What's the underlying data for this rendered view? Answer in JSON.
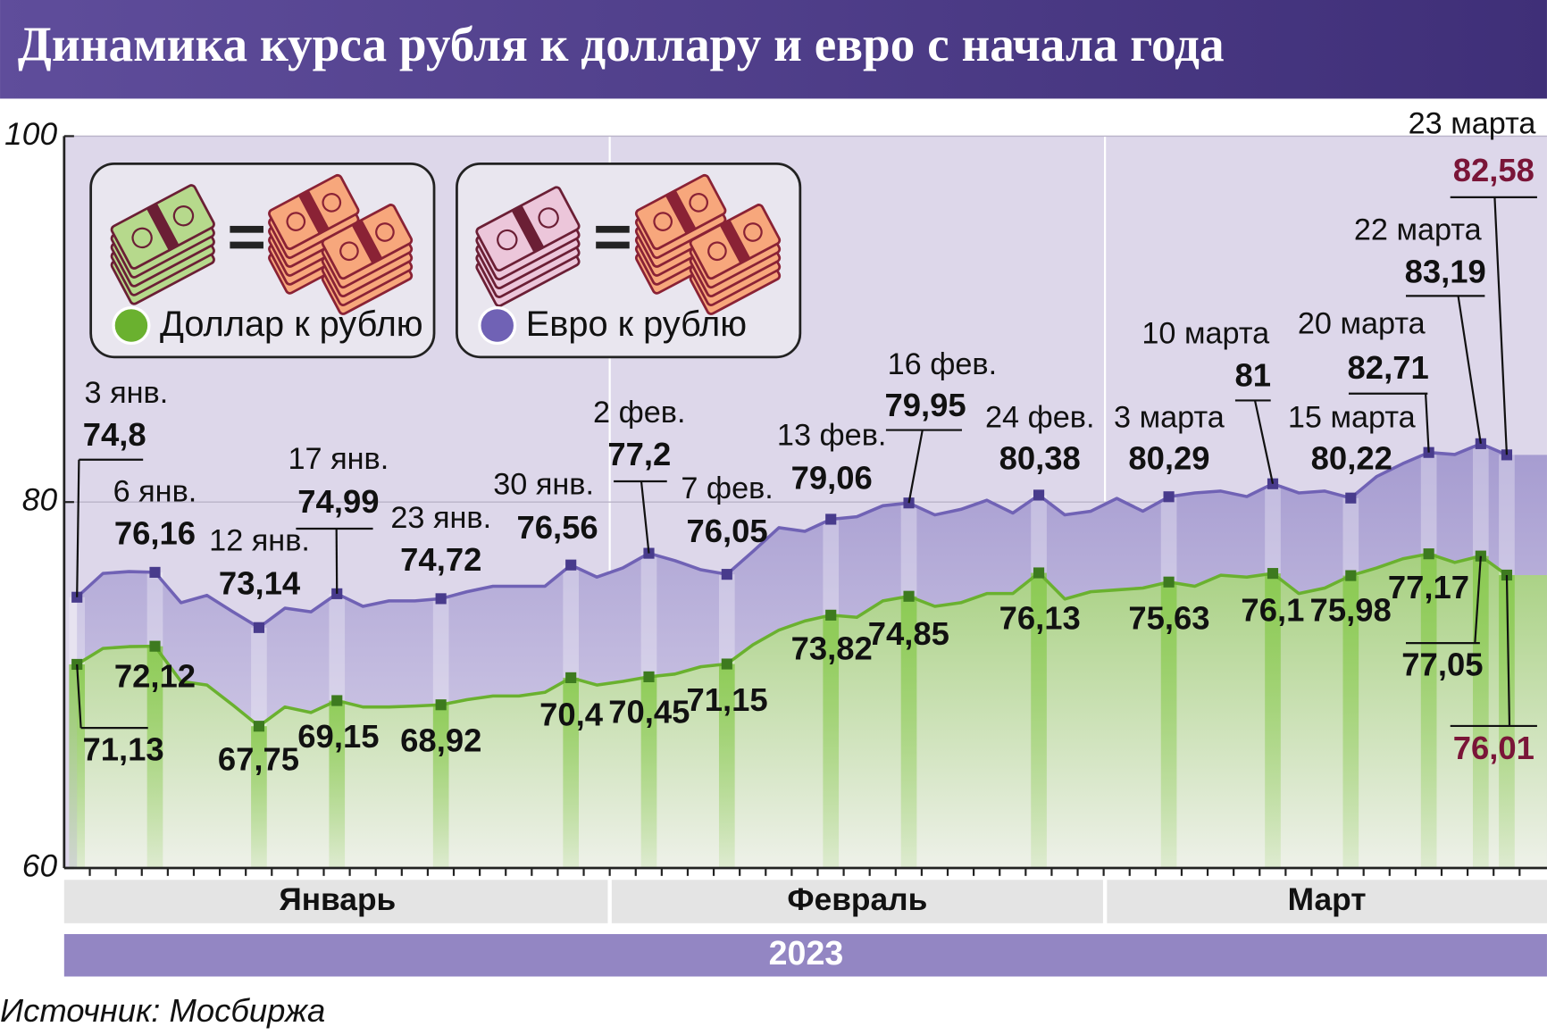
{
  "chart_data": {
    "type": "line",
    "title": "Динамика курса рубля к доллару и евро с начала года",
    "categories": [
      "3 янв.",
      null,
      null,
      "6 янв.",
      null,
      null,
      null,
      "12 янв.",
      null,
      null,
      "17 янв.",
      null,
      null,
      null,
      "23 янв.",
      null,
      null,
      null,
      null,
      "30 янв.",
      null,
      null,
      "2 фев.",
      null,
      null,
      "7 фев.",
      null,
      null,
      null,
      "13 фев.",
      null,
      null,
      "16 фев.",
      null,
      null,
      null,
      null,
      "24 фев.",
      null,
      null,
      null,
      null,
      "3 марта",
      null,
      null,
      null,
      "10 марта",
      null,
      null,
      "15 марта",
      null,
      null,
      "20 марта",
      null,
      "22 марта",
      "23 марта"
    ],
    "series": [
      {
        "name": "Доллар к рублю",
        "color": "#6ab12f",
        "values": [
          71.13,
          72,
          72.1,
          72.12,
          70.2,
          70,
          68.9,
          67.75,
          68.8,
          68.5,
          69.15,
          68.8,
          68.8,
          68.85,
          68.92,
          69.2,
          69.4,
          69.4,
          69.6,
          70.4,
          70,
          70.2,
          70.45,
          70.6,
          71,
          71.15,
          72.2,
          73,
          73.5,
          73.82,
          73.7,
          74.6,
          74.85,
          74.3,
          74.5,
          75,
          75,
          76.13,
          74.7,
          75.1,
          75.2,
          75.3,
          75.63,
          75.4,
          76,
          75.9,
          76.1,
          75,
          75.3,
          75.98,
          76.4,
          76.9,
          77.17,
          76.7,
          77.05,
          76.01
        ],
        "value_labels": [
          "71,13",
          null,
          null,
          "72,12",
          null,
          null,
          null,
          "67,75",
          null,
          null,
          "69,15",
          null,
          null,
          null,
          "68,92",
          null,
          null,
          null,
          null,
          "70,4",
          null,
          null,
          "70,45",
          null,
          null,
          "71,15",
          null,
          null,
          null,
          "73,82",
          null,
          null,
          "74,85",
          null,
          null,
          null,
          null,
          "76,13",
          null,
          null,
          null,
          null,
          "75,63",
          null,
          null,
          null,
          "76,1",
          null,
          null,
          "75,98",
          null,
          null,
          "77,17",
          null,
          "77,05",
          "76,01"
        ]
      },
      {
        "name": "Евро к рублю",
        "color": "#7062b5",
        "values": [
          74.8,
          76.1,
          76.2,
          76.16,
          74.5,
          74.9,
          74,
          73.14,
          74.2,
          74,
          74.99,
          74.3,
          74.6,
          74.6,
          74.72,
          75.1,
          75.4,
          75.4,
          75.4,
          76.56,
          75.9,
          76.4,
          77.2,
          76.8,
          76.3,
          76.05,
          77.3,
          78.6,
          78.4,
          79.06,
          79.2,
          79.8,
          79.95,
          79.3,
          79.6,
          80.1,
          79.4,
          80.38,
          79.3,
          79.5,
          80.2,
          79.5,
          80.29,
          80.5,
          80.6,
          80.3,
          81,
          80.5,
          80.6,
          80.22,
          81.4,
          82.1,
          82.71,
          82.6,
          83.19,
          82.58
        ],
        "value_labels": [
          "74,8",
          null,
          null,
          "76,16",
          null,
          null,
          null,
          "73,14",
          null,
          null,
          "74,99",
          null,
          null,
          null,
          "74,72",
          null,
          null,
          null,
          null,
          "76,56",
          null,
          null,
          "77,2",
          null,
          null,
          "76,05",
          null,
          null,
          null,
          "79,06",
          null,
          null,
          "79,95",
          null,
          null,
          null,
          null,
          "80,38",
          null,
          null,
          null,
          null,
          "80,29",
          null,
          null,
          null,
          "81",
          null,
          null,
          "80,22",
          null,
          null,
          "82,71",
          null,
          "83,19",
          "82,58"
        ]
      }
    ],
    "ylim": [
      60,
      100
    ],
    "yticks": [
      60,
      80,
      100
    ],
    "grid": true,
    "months": [
      "Январь",
      "Февраль",
      "Март"
    ],
    "year": "2023",
    "source": "Источник: Мосбиржа"
  }
}
